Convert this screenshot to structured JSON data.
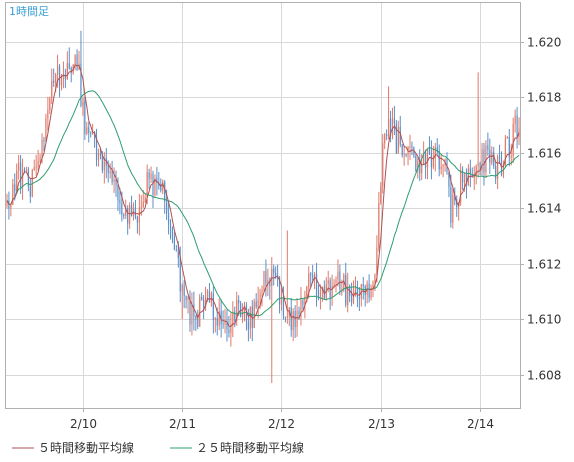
{
  "chart_data": {
    "type": "candlestick",
    "title": "1時間足",
    "y_ticks": [
      "1.620",
      "1.618",
      "1.616",
      "1.614",
      "1.612",
      "1.610",
      "1.608"
    ],
    "ylim": [
      1.6068,
      1.6214
    ],
    "x_ticks": [
      {
        "label": "2/10",
        "index": 39
      },
      {
        "label": "2/11",
        "index": 90
      },
      {
        "label": "2/12",
        "index": 141
      },
      {
        "label": "2/13",
        "index": 192
      },
      {
        "label": "2/14",
        "index": 243
      }
    ],
    "grid": true,
    "legend_position": "bottom",
    "colors": {
      "up": "#e07a6a",
      "down": "#5b8fc8",
      "ma5": "#b05050",
      "ma25": "#2e9e6e",
      "grid": "#d8d8d8",
      "frame": "#b0b0b0"
    },
    "series": [
      {
        "name": "５時間移動平均線",
        "color": "#b05050",
        "key": "ma5"
      },
      {
        "name": "２５時間移動平均線",
        "color": "#2e9e6e",
        "key": "ma25"
      }
    ],
    "anchors": [
      [
        0,
        1.6138
      ],
      [
        6,
        1.6152
      ],
      [
        12,
        1.6148
      ],
      [
        18,
        1.616
      ],
      [
        24,
        1.619
      ],
      [
        30,
        1.6188
      ],
      [
        36,
        1.6192
      ],
      [
        40,
        1.6172
      ],
      [
        46,
        1.616
      ],
      [
        52,
        1.615
      ],
      [
        58,
        1.614
      ],
      [
        66,
        1.6138
      ],
      [
        72,
        1.6148
      ],
      [
        78,
        1.6152
      ],
      [
        84,
        1.6132
      ],
      [
        90,
        1.611
      ],
      [
        96,
        1.61
      ],
      [
        102,
        1.6108
      ],
      [
        108,
        1.6102
      ],
      [
        114,
        1.6098
      ],
      [
        120,
        1.6105
      ],
      [
        126,
        1.61
      ],
      [
        134,
        1.6118
      ],
      [
        140,
        1.611
      ],
      [
        146,
        1.6098
      ],
      [
        152,
        1.611
      ],
      [
        158,
        1.6112
      ],
      [
        164,
        1.6108
      ],
      [
        170,
        1.6115
      ],
      [
        176,
        1.6108
      ],
      [
        182,
        1.6112
      ],
      [
        188,
        1.611
      ],
      [
        194,
        1.6172
      ],
      [
        200,
        1.6165
      ],
      [
        206,
        1.616
      ],
      [
        212,
        1.6158
      ],
      [
        218,
        1.616
      ],
      [
        224,
        1.6158
      ],
      [
        228,
        1.614
      ],
      [
        234,
        1.615
      ],
      [
        240,
        1.6152
      ],
      [
        246,
        1.6158
      ],
      [
        252,
        1.6155
      ],
      [
        258,
        1.6162
      ],
      [
        262,
        1.617
      ]
    ],
    "spikes": [
      [
        38,
        1.6204,
        "high"
      ],
      [
        90,
        1.61,
        "low"
      ],
      [
        136,
        1.6077,
        "low"
      ],
      [
        144,
        1.6132,
        "high"
      ],
      [
        196,
        1.6184,
        "high"
      ],
      [
        242,
        1.6189,
        "high"
      ],
      [
        228,
        1.6133,
        "low"
      ],
      [
        32,
        1.6198,
        "high"
      ]
    ]
  },
  "legend": {
    "ma5_label": "５時間移動平均線",
    "ma25_label": "２５時間移動平均線"
  }
}
